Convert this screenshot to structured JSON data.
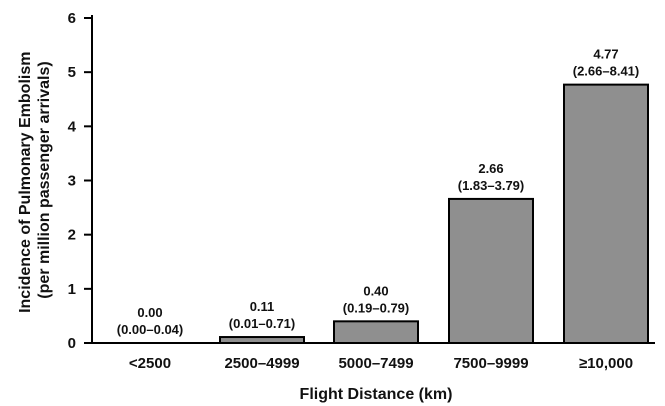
{
  "chart_data": {
    "type": "bar",
    "title": "",
    "xlabel": "Flight Distance (km)",
    "ylabel_lines": [
      "Incidence of Pulmonary Embolism",
      "(per million passenger arrivals)"
    ],
    "categories": [
      "<2500",
      "2500–4999",
      "5000–7499",
      "7500–9999",
      "≥10,000"
    ],
    "values": [
      0.0,
      0.11,
      0.4,
      2.66,
      4.77
    ],
    "value_labels": [
      "0.00",
      "0.11",
      "0.40",
      "2.66",
      "4.77"
    ],
    "ci_labels": [
      "(0.00–0.04)",
      "(0.01–0.71)",
      "(0.19–0.79)",
      "(1.83–3.79)",
      "(2.66–8.41)"
    ],
    "ylim": [
      0,
      6
    ],
    "yticks": [
      0,
      1,
      2,
      3,
      4,
      5,
      6
    ],
    "grid": false,
    "bar_color": "#8f8f8f",
    "bar_edge_color": "#000000"
  }
}
